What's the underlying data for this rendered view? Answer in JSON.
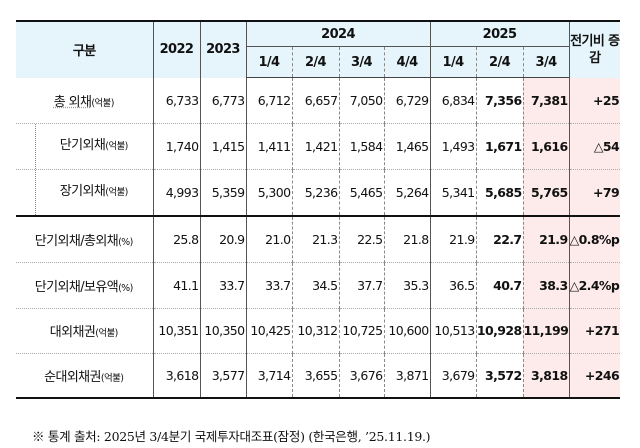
{
  "header": {
    "category": "구분",
    "y2022": "2022",
    "y2023": "2023",
    "y2024": "2024",
    "y2025": "2025",
    "change": "전기비 증감",
    "q2024": [
      "1/4",
      "2/4",
      "3/4",
      "4/4"
    ],
    "q2025": [
      "1/4",
      "2/4",
      "3/4"
    ]
  },
  "rows": [
    {
      "label": "총 외채",
      "unit": "(억불)",
      "indent": false,
      "values": [
        "6,733",
        "6,773",
        "6,712",
        "6,657",
        "7,050",
        "6,729",
        "6,834",
        "7,356",
        "7,381"
      ],
      "change": "+25"
    },
    {
      "label": "단기외채",
      "unit": "(억불)",
      "indent": true,
      "values": [
        "1,740",
        "1,415",
        "1,411",
        "1,421",
        "1,584",
        "1,465",
        "1,493",
        "1,671",
        "1,616"
      ],
      "change": "△54"
    },
    {
      "label": "장기외채",
      "unit": "(억불)",
      "indent": true,
      "values": [
        "4,993",
        "5,359",
        "5,300",
        "5,236",
        "5,465",
        "5,264",
        "5,341",
        "5,685",
        "5,765"
      ],
      "change": "+79"
    },
    {
      "label": "단기외채/총외채",
      "unit": "(%)",
      "indent": false,
      "values": [
        "25.8",
        "20.9",
        "21.0",
        "21.3",
        "22.5",
        "21.8",
        "21.9",
        "22.7",
        "21.9"
      ],
      "change": "△0.8%p"
    },
    {
      "label": "단기외채/보유액",
      "unit": "(%)",
      "indent": false,
      "values": [
        "41.1",
        "33.7",
        "33.7",
        "34.5",
        "37.7",
        "35.3",
        "36.5",
        "40.7",
        "38.3"
      ],
      "change": "△2.4%p"
    },
    {
      "label": "대외채권",
      "unit": "(억불)",
      "indent": false,
      "values": [
        "10,351",
        "10,350",
        "10,425",
        "10,312",
        "10,725",
        "10,600",
        "10,513",
        "10,928",
        "11,199"
      ],
      "change": "+271"
    },
    {
      "label": "순대외채권",
      "unit": "(억불)",
      "indent": false,
      "values": [
        "3,618",
        "3,577",
        "3,714",
        "3,655",
        "3,676",
        "3,871",
        "3,679",
        "3,572",
        "3,818"
      ],
      "change": "+246"
    }
  ],
  "note": "※ 통계 출처: 2025년 3/4분기 국제투자대조표(잠정) (한국은행, ’25.11.19.)",
  "colors": {
    "header_bg": "#e6f5fb",
    "highlight_bg": "#fdeaea"
  }
}
